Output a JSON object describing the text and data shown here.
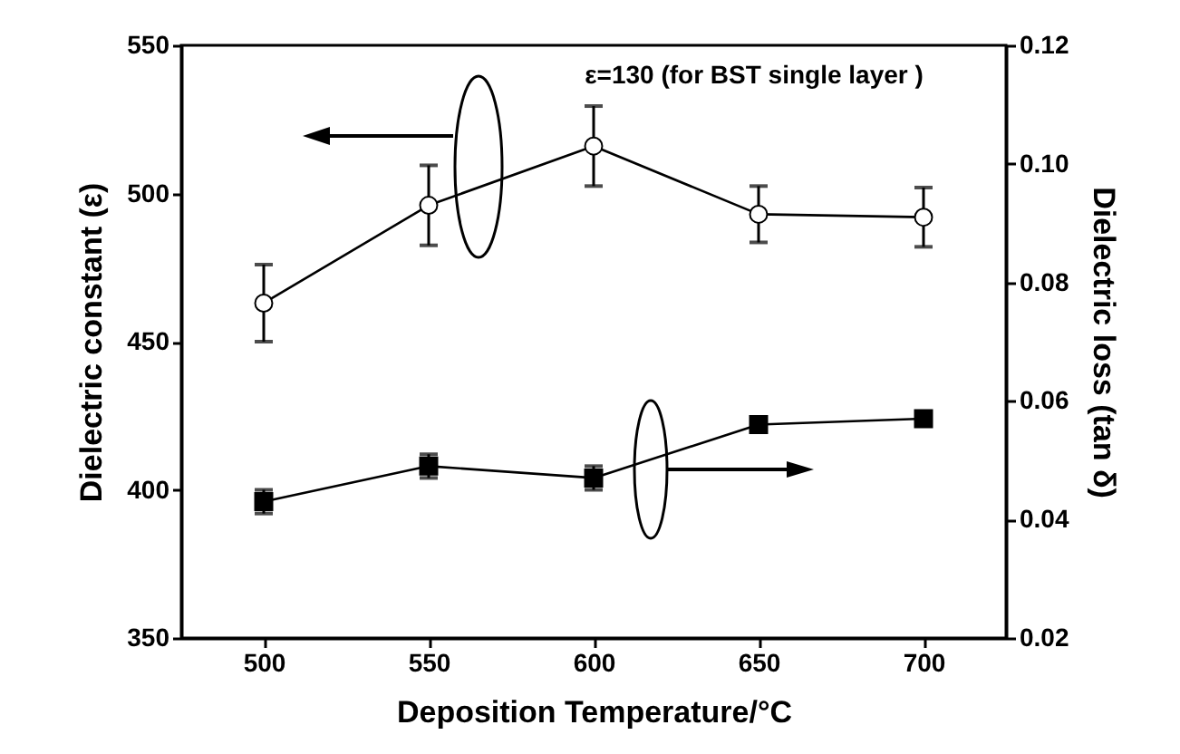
{
  "chart_data": {
    "type": "line",
    "xlabel": "Deposition Temperature/°C",
    "ylabel": "Dielectric constant (ε)",
    "y2label": "Dielectric loss (tan δ)",
    "x": [
      500,
      550,
      600,
      650,
      700
    ],
    "series": [
      {
        "color": "#000000",
        "marker": "circle",
        "values": [
          463,
          496,
          516,
          493,
          492
        ],
        "errors": [
          13,
          13.5,
          13.5,
          9.5,
          10
        ]
      },
      {
        "color": "#000000",
        "marker": "square",
        "axis": "y2",
        "values": [
          0.043,
          0.049,
          0.047,
          0.056,
          0.057
        ],
        "errors": [
          0.002,
          0.002,
          0.002,
          0.001,
          0.001
        ]
      }
    ],
    "xlim": [
      475,
      725
    ],
    "xticks": [
      500,
      550,
      600,
      650,
      700
    ],
    "ylim": [
      350,
      550
    ],
    "yticks": [
      350,
      400,
      450,
      500,
      550
    ],
    "y2lim": [
      0.02,
      0.12
    ],
    "y2ticks": [
      0.02,
      0.04,
      0.06,
      0.08,
      {
        "value": 0.1,
        "label": "0.10"
      },
      0.12
    ],
    "annotations": [
      "ε=130 (for BST single layer )"
    ],
    "grid": false
  }
}
